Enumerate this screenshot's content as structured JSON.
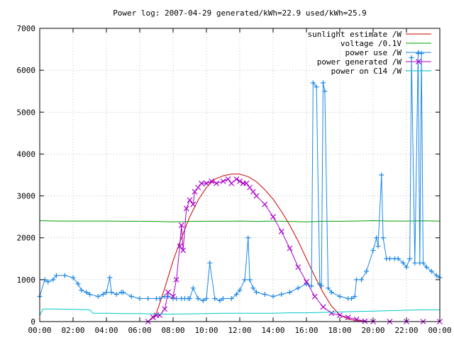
{
  "chart_data": {
    "type": "line",
    "title": "Power log: 2007-04-29 generated/kWh=22.9 used/kWh=25.9",
    "xlabel": "",
    "ylabel": "",
    "x_ticks": [
      "00:00",
      "02:00",
      "04:00",
      "06:00",
      "08:00",
      "10:00",
      "12:00",
      "14:00",
      "16:00",
      "18:00",
      "20:00",
      "22:00",
      "00:00"
    ],
    "y_ticks": [
      "0",
      "1000",
      "2000",
      "3000",
      "4000",
      "5000",
      "6000",
      "7000"
    ],
    "xlim_hours": [
      0,
      24
    ],
    "ylim": [
      0,
      7000
    ],
    "grid": true,
    "legend_position": "top-right",
    "series": [
      {
        "name": "sunlight estimate /W",
        "color": "#cc0000",
        "marker": "none",
        "x_hours": [
          6.5,
          7.0,
          7.5,
          8.0,
          8.5,
          9.0,
          9.5,
          10.0,
          10.5,
          11.0,
          11.5,
          12.0,
          12.5,
          13.0,
          13.5,
          14.0,
          14.5,
          15.0,
          15.5,
          16.0,
          16.5,
          17.0,
          17.5,
          18.0,
          18.5,
          19.0,
          19.5,
          20.0
        ],
        "values": [
          0,
          200,
          800,
          1450,
          2000,
          2500,
          2900,
          3200,
          3400,
          3480,
          3520,
          3520,
          3460,
          3340,
          3150,
          2920,
          2630,
          2300,
          1920,
          1500,
          1080,
          690,
          370,
          160,
          60,
          20,
          5,
          0
        ]
      },
      {
        "name": "voltage /0.1V",
        "color": "#00a000",
        "marker": "none",
        "x_hours": [
          0,
          1,
          2,
          3,
          4,
          5,
          6,
          7,
          8,
          9,
          10,
          11,
          12,
          13,
          14,
          15,
          16,
          17,
          18,
          19,
          20,
          21,
          22,
          23,
          24
        ],
        "values": [
          2410,
          2400,
          2400,
          2400,
          2400,
          2395,
          2395,
          2390,
          2380,
          2390,
          2395,
          2395,
          2400,
          2390,
          2400,
          2390,
          2380,
          2395,
          2395,
          2400,
          2410,
          2400,
          2400,
          2405,
          2400
        ]
      },
      {
        "name": "power use /W",
        "color": "#1e88e5",
        "marker": "plus",
        "x_hours": [
          0,
          0.3,
          0.5,
          0.8,
          1.0,
          1.5,
          2.0,
          2.3,
          2.5,
          2.8,
          3.0,
          3.5,
          3.8,
          4.0,
          4.2,
          4.3,
          4.6,
          4.9,
          5.0,
          5.5,
          6.0,
          6.5,
          7.0,
          7.2,
          7.5,
          7.7,
          8.0,
          8.2,
          8.5,
          8.7,
          8.9,
          9.0,
          9.2,
          9.5,
          9.8,
          10.0,
          10.2,
          10.5,
          10.8,
          11.0,
          11.5,
          11.8,
          12.0,
          12.3,
          12.5,
          12.6,
          12.8,
          13.0,
          13.5,
          14.0,
          14.5,
          15.0,
          15.5,
          16.0,
          16.3,
          16.4,
          16.6,
          16.8,
          16.9,
          17.0,
          17.1,
          17.3,
          17.5,
          18.0,
          18.5,
          18.7,
          18.9,
          19.0,
          19.3,
          19.6,
          20.0,
          20.2,
          20.3,
          20.5,
          20.6,
          20.8,
          21.0,
          21.3,
          21.5,
          21.8,
          22.0,
          22.2,
          22.3,
          22.5,
          22.7,
          22.8,
          22.9,
          23.0,
          23.2,
          23.5,
          23.8,
          24.0
        ],
        "values": [
          600,
          1000,
          950,
          1000,
          1100,
          1100,
          1050,
          900,
          750,
          700,
          650,
          600,
          650,
          700,
          1050,
          700,
          650,
          700,
          700,
          600,
          550,
          550,
          550,
          550,
          600,
          600,
          550,
          550,
          550,
          550,
          550,
          550,
          800,
          550,
          500,
          550,
          1400,
          550,
          500,
          550,
          550,
          650,
          750,
          1000,
          2000,
          1000,
          800,
          700,
          650,
          600,
          650,
          700,
          800,
          900,
          850,
          5700,
          5600,
          900,
          850,
          5700,
          5500,
          800,
          700,
          600,
          550,
          550,
          600,
          1000,
          1000,
          1200,
          1700,
          2000,
          1800,
          3500,
          2000,
          1500,
          1500,
          1500,
          1500,
          1400,
          1300,
          1500,
          6300,
          1400,
          6400,
          1400,
          6400,
          1400,
          1300,
          1200,
          1100,
          1050
        ]
      },
      {
        "name": "power generated /W",
        "color": "#aa00cc",
        "marker": "x",
        "x_hours": [
          6.5,
          6.8,
          7.0,
          7.2,
          7.5,
          7.7,
          8.0,
          8.2,
          8.4,
          8.5,
          8.6,
          8.8,
          9.0,
          9.2,
          9.3,
          9.5,
          9.7,
          10.0,
          10.3,
          10.6,
          11.0,
          11.3,
          11.5,
          11.8,
          12.0,
          12.2,
          12.4,
          12.6,
          12.8,
          13.0,
          13.5,
          14.0,
          14.5,
          15.0,
          15.5,
          16.0,
          16.5,
          17.0,
          17.5,
          18.0,
          18.5,
          19.0,
          19.5,
          20.0,
          21.0,
          22.0,
          23.0,
          24.0
        ],
        "values": [
          0,
          100,
          150,
          150,
          300,
          700,
          600,
          1000,
          1800,
          2300,
          1700,
          2700,
          2900,
          2800,
          3100,
          3200,
          3300,
          3300,
          3350,
          3300,
          3350,
          3400,
          3300,
          3400,
          3350,
          3300,
          3300,
          3200,
          3100,
          3000,
          2800,
          2500,
          2150,
          1750,
          1300,
          950,
          600,
          350,
          200,
          150,
          100,
          50,
          10,
          0,
          0,
          0,
          0,
          0
        ]
      },
      {
        "name": "power on C14 /W",
        "color": "#00c8c8",
        "marker": "none",
        "x_hours": [
          0,
          0.2,
          1.0,
          2.0,
          3.0,
          3.2,
          4.0,
          5.0,
          6.0,
          7.0,
          8.0,
          9.0,
          10.0,
          11.0,
          12.0,
          13.0,
          14.0,
          15.0,
          16.0,
          17.0,
          18.0,
          19.0,
          20.0,
          21.0,
          22.0,
          23.0,
          24.0
        ],
        "values": [
          150,
          300,
          300,
          290,
          280,
          200,
          200,
          190,
          190,
          180,
          180,
          185,
          190,
          200,
          200,
          200,
          200,
          210,
          210,
          220,
          230,
          240,
          250,
          260,
          270,
          280,
          280
        ]
      }
    ]
  }
}
